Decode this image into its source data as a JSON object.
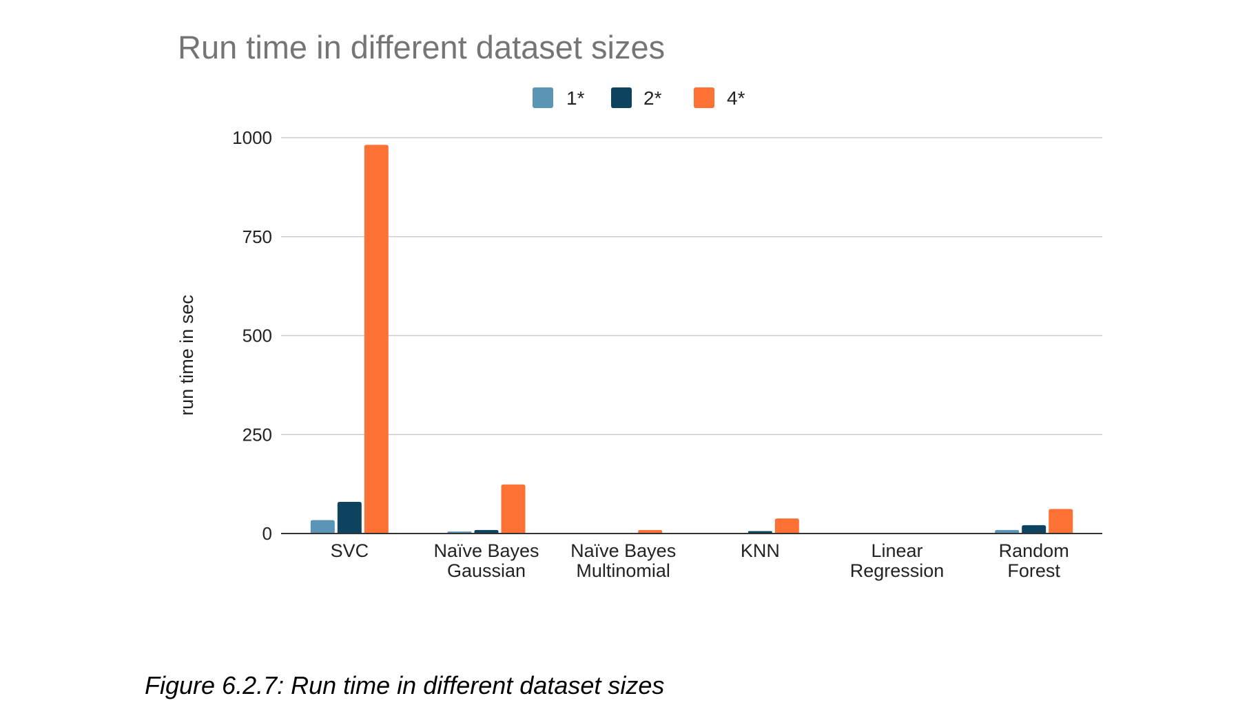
{
  "caption": "Figure 6.2.7: Run time in different dataset sizes",
  "chart_data": {
    "type": "bar",
    "title": "Run time in different dataset sizes",
    "xlabel": "",
    "ylabel": "run time in sec",
    "ylim": [
      0,
      1000
    ],
    "yticks": [
      0,
      250,
      500,
      750,
      1000
    ],
    "grid": true,
    "legend_position": "top",
    "categories": [
      [
        "SVC"
      ],
      [
        "Naïve Bayes",
        "Gaussian"
      ],
      [
        "Naïve Bayes",
        "Multinomial"
      ],
      [
        "KNN"
      ],
      [
        "Linear",
        "Regression"
      ],
      [
        "Random",
        "Forest"
      ]
    ],
    "series": [
      {
        "name": "1*",
        "color": "#5b95b5",
        "values": [
          34,
          5,
          1,
          1,
          0,
          9
        ]
      },
      {
        "name": "2*",
        "color": "#0e4360",
        "values": [
          80,
          9,
          1,
          6,
          0,
          21
        ]
      },
      {
        "name": "4*",
        "color": "#fd7234",
        "values": [
          982,
          124,
          9,
          38,
          0,
          62
        ]
      }
    ]
  }
}
